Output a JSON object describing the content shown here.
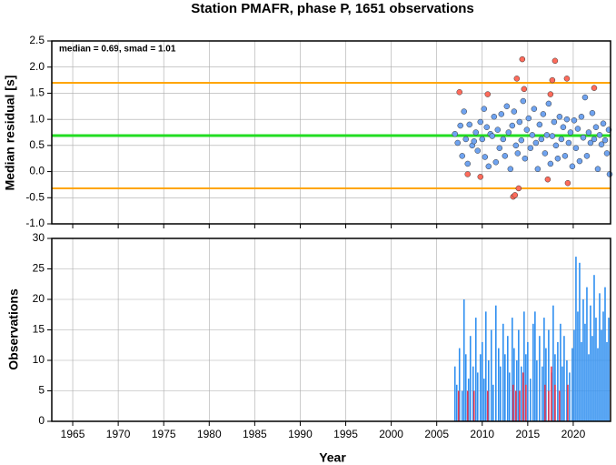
{
  "chart_data": [
    {
      "type": "scatter",
      "title": "Station PMAFR, phase P, 1651 observations",
      "ylabel": "Median residual [s]",
      "annotation": "median = 0.69, smad = 1.01",
      "xlim": [
        1962.7,
        2024.1
      ],
      "xticks": [
        1965,
        1970,
        1975,
        1980,
        1985,
        1990,
        1995,
        2000,
        2005,
        2010,
        2015,
        2020
      ],
      "ylim": [
        -1,
        2.5
      ],
      "yticks": [
        {
          "value": -1,
          "label": "-1.0"
        },
        -0.5,
        {
          "value": 0,
          "label": "0.0"
        },
        0.5,
        {
          "value": 1,
          "label": "1.0"
        },
        1.5,
        {
          "value": 2,
          "label": "2.0"
        },
        2.5
      ],
      "grid": true,
      "hlines": [
        {
          "value": 0.69,
          "color": "#22dd22"
        },
        {
          "value": 1.7,
          "color": "#ffa500"
        },
        {
          "value": -0.32,
          "color": "#ffa500"
        }
      ],
      "series": [
        {
          "color": "#6fa3f0",
          "x": [
            2007.0,
            2007.3,
            2007.6,
            2007.8,
            2008.0,
            2008.2,
            2008.4,
            2008.6,
            2008.9,
            2009.1,
            2009.3,
            2009.5,
            2009.8,
            2010.0,
            2010.2,
            2010.3,
            2010.5,
            2010.7,
            2010.9,
            2011.1,
            2011.3,
            2011.5,
            2011.7,
            2011.9,
            2012.1,
            2012.3,
            2012.5,
            2012.7,
            2012.9,
            2013.1,
            2013.3,
            2013.5,
            2013.7,
            2013.9,
            2014.1,
            2014.3,
            2014.5,
            2014.7,
            2014.9,
            2015.1,
            2015.3,
            2015.5,
            2015.7,
            2015.9,
            2016.1,
            2016.3,
            2016.5,
            2016.7,
            2016.9,
            2017.1,
            2017.3,
            2017.5,
            2017.7,
            2017.9,
            2018.1,
            2018.3,
            2018.5,
            2018.7,
            2018.9,
            2019.1,
            2019.3,
            2019.5,
            2019.7,
            2019.9,
            2020.1,
            2020.3,
            2020.5,
            2020.7,
            2020.9,
            2021.1,
            2021.3,
            2021.5,
            2021.7,
            2021.9,
            2022.1,
            2022.3,
            2022.5,
            2022.7,
            2022.9,
            2023.1,
            2023.3,
            2023.5,
            2023.7,
            2023.9,
            2024.0
          ],
          "values": [
            0.72,
            0.55,
            0.88,
            0.3,
            1.15,
            0.62,
            0.15,
            0.9,
            0.5,
            0.58,
            0.75,
            0.4,
            0.95,
            0.62,
            1.2,
            0.28,
            0.85,
            0.1,
            0.72,
            0.68,
            1.05,
            0.18,
            0.8,
            0.45,
            1.1,
            0.62,
            0.3,
            1.25,
            0.75,
            0.05,
            0.88,
            1.15,
            0.5,
            0.35,
            0.95,
            0.6,
            1.35,
            0.25,
            0.8,
            1.02,
            0.45,
            0.7,
            1.2,
            0.55,
            0.05,
            0.9,
            0.62,
            1.1,
            0.35,
            0.7,
            1.3,
            0.15,
            0.68,
            0.95,
            0.5,
            0.25,
            1.05,
            0.62,
            0.85,
            0.3,
            1.0,
            0.55,
            0.75,
            0.1,
            0.98,
            0.45,
            0.82,
            0.2,
            1.05,
            0.65,
            1.42,
            0.3,
            0.75,
            0.55,
            1.12,
            0.62,
            0.85,
            0.05,
            0.7,
            0.52,
            0.92,
            0.6,
            0.35,
            0.8,
            -0.05
          ]
        },
        {
          "color": "#ff6b5b",
          "x": [
            2007.5,
            2008.4,
            2009.8,
            2010.6,
            2013.4,
            2013.6,
            2013.8,
            2014.0,
            2014.4,
            2014.6,
            2017.2,
            2017.5,
            2017.7,
            2018.0,
            2019.3,
            2019.4,
            2022.3
          ],
          "values": [
            1.52,
            -0.05,
            -0.1,
            1.48,
            -0.48,
            -0.45,
            1.78,
            -0.32,
            2.15,
            1.58,
            -0.15,
            1.48,
            1.75,
            2.12,
            1.78,
            -0.22,
            1.6
          ]
        }
      ]
    },
    {
      "type": "bar",
      "ylabel": "Observations",
      "xlabel": "Year",
      "xlim": [
        1962.7,
        2024.1
      ],
      "xticks": [
        1965,
        1970,
        1975,
        1980,
        1985,
        1990,
        1995,
        2000,
        2005,
        2010,
        2015,
        2020
      ],
      "ylim": [
        0,
        30
      ],
      "yticks": [
        0,
        5,
        10,
        15,
        20,
        25,
        30
      ],
      "grid": true,
      "series": [
        {
          "color": "#2f8ff0",
          "x": [
            2007.0,
            2007.2,
            2007.5,
            2007.8,
            2008.0,
            2008.2,
            2008.5,
            2008.7,
            2009.0,
            2009.3,
            2009.5,
            2009.8,
            2010.0,
            2010.2,
            2010.4,
            2010.7,
            2011.0,
            2011.2,
            2011.5,
            2011.8,
            2012.0,
            2012.3,
            2012.5,
            2012.8,
            2013.0,
            2013.3,
            2013.5,
            2013.8,
            2014.0,
            2014.3,
            2014.6,
            2014.8,
            2015.0,
            2015.3,
            2015.6,
            2015.8,
            2016.0,
            2016.3,
            2016.6,
            2016.8,
            2017.0,
            2017.3,
            2017.6,
            2017.8,
            2018.0,
            2018.3,
            2018.6,
            2018.8,
            2019.0,
            2019.3,
            2019.6,
            2019.9,
            2020.1,
            2020.3,
            2020.5,
            2020.7,
            2020.9,
            2021.1,
            2021.3,
            2021.5,
            2021.7,
            2021.9,
            2022.1,
            2022.3,
            2022.5,
            2022.7,
            2022.9,
            2023.1,
            2023.3,
            2023.5,
            2023.7,
            2023.9
          ],
          "values": [
            9,
            6,
            12,
            5,
            20,
            11,
            7,
            14,
            9,
            17,
            8,
            11,
            13,
            7,
            18,
            10,
            15,
            6,
            19,
            12,
            9,
            16,
            11,
            14,
            8,
            17,
            12,
            10,
            15,
            9,
            18,
            11,
            13,
            7,
            16,
            18,
            10,
            14,
            9,
            17,
            12,
            15,
            8,
            19,
            11,
            13,
            16,
            9,
            14,
            10,
            8,
            12,
            15,
            27,
            18,
            26,
            13,
            20,
            16,
            22,
            11,
            19,
            14,
            24,
            17,
            12,
            21,
            15,
            18,
            22,
            13,
            17
          ]
        },
        {
          "color": "#e8384f",
          "x": [
            2007.4,
            2008.4,
            2009.1,
            2010.6,
            2013.4,
            2013.7,
            2014.1,
            2014.5,
            2014.8,
            2016.9,
            2017.3,
            2017.6,
            2018.0,
            2018.5,
            2019.4
          ],
          "values": [
            5,
            5,
            5,
            5,
            6,
            5,
            5,
            8,
            6,
            6,
            5,
            9,
            6,
            5,
            6
          ]
        }
      ]
    }
  ]
}
